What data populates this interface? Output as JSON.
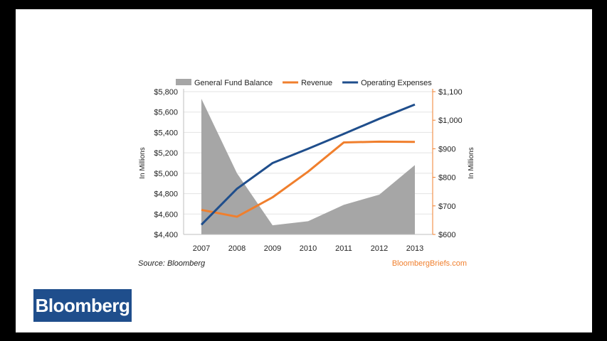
{
  "chart_data": {
    "type": "area+line",
    "categories": [
      "2007",
      "2008",
      "2009",
      "2010",
      "2011",
      "2012",
      "2013"
    ],
    "series": [
      {
        "name": "General Fund Balance",
        "type": "area",
        "axis": "left",
        "color": "#a6a6a6",
        "values": [
          5730,
          5000,
          4490,
          4530,
          4690,
          4790,
          5080
        ]
      },
      {
        "name": "Revenue",
        "type": "line",
        "axis": "right",
        "color": "#f07f2d",
        "values": [
          686,
          662,
          730,
          820,
          922,
          925,
          924
        ]
      },
      {
        "name": "Operating Expenses",
        "type": "line",
        "axis": "right",
        "color": "#1f4e8c",
        "values": [
          634,
          760,
          850,
          900,
          952,
          1005,
          1055
        ]
      }
    ],
    "left_axis": {
      "min": 4400,
      "max": 5800,
      "ticks": [
        4400,
        4600,
        4800,
        5000,
        5200,
        5400,
        5600,
        5800
      ],
      "tick_labels": [
        "$4,400",
        "$4,600",
        "$4,800",
        "$5,000",
        "$5,200",
        "$5,400",
        "$5,600",
        "$5,800"
      ],
      "label": "In Millions"
    },
    "right_axis": {
      "min": 600,
      "max": 1100,
      "ticks": [
        600,
        700,
        800,
        900,
        1000,
        1100
      ],
      "tick_labels": [
        "$600",
        "$700",
        "$800",
        "$900",
        "$1,000",
        "$1,100"
      ],
      "label": "In Millions",
      "color": "#f07f2d"
    },
    "source": "Source: Bloomberg",
    "credit": "BloombergBriefs.com"
  },
  "brand": {
    "logo_text": "Bloomberg",
    "logo_color": "#1f4e8c"
  }
}
